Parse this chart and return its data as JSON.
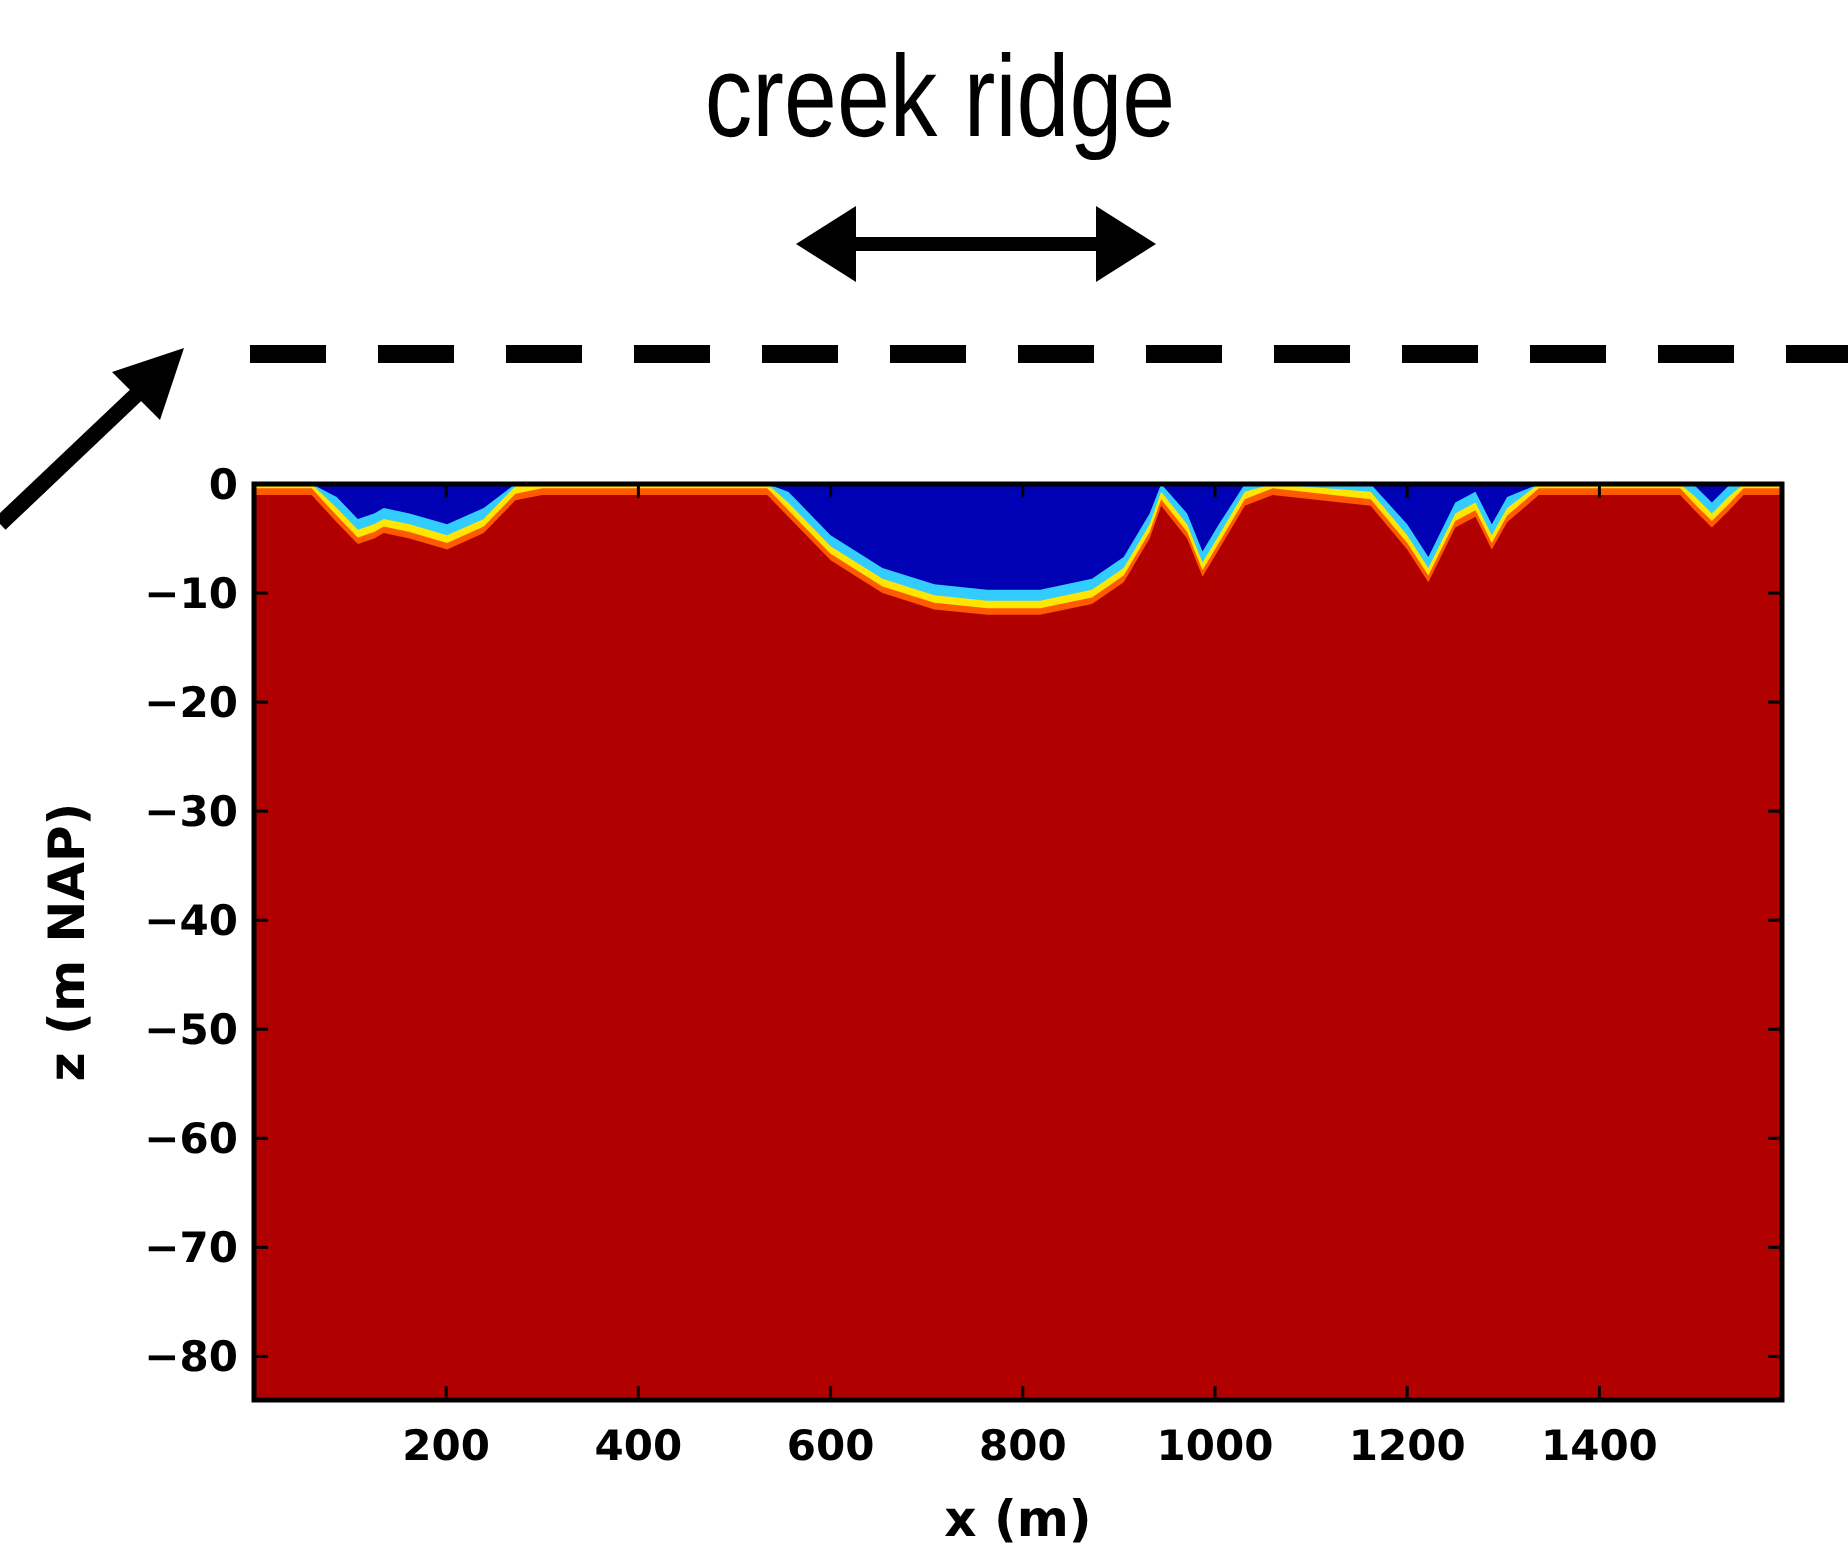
{
  "chart_data": {
    "type": "area",
    "xlabel": "x (m)",
    "ylabel": "z (m NAP)",
    "annotations": [
      "creek ridge"
    ],
    "x": [
      0,
      60,
      86,
      108,
      125,
      135,
      162,
      201,
      239,
      272,
      300,
      450,
      534,
      556,
      600,
      654,
      708,
      763,
      818,
      872,
      905,
      932,
      944,
      971,
      987,
      1004,
      1031,
      1060,
      1162,
      1200,
      1222,
      1250,
      1271,
      1288,
      1304,
      1337,
      1484,
      1500,
      1517,
      1534,
      1550,
      1590
    ],
    "series": [
      {
        "color": "#ff5a00",
        "values": [
          -1,
          -1,
          -3.5,
          -5.5,
          -5,
          -4.5,
          -5,
          -6,
          -4.5,
          -1.5,
          -1,
          -1,
          -1,
          -3,
          -7,
          -10,
          -11.5,
          -12,
          -12,
          -11,
          -9,
          -5,
          -2,
          -5,
          -8.5,
          -6,
          -2,
          -1,
          -2,
          -6,
          -9,
          -4,
          -3,
          -6,
          -3.5,
          -1,
          -1,
          -2.5,
          -4,
          -2.5,
          -1,
          -1
        ]
      },
      {
        "color": "#ffe600",
        "values": [
          -0.4,
          -0.4,
          -2.9,
          -4.9,
          -4.4,
          -3.9,
          -4.4,
          -5.4,
          -3.9,
          -0.9,
          -0.4,
          -0.4,
          -0.4,
          -2.4,
          -6.4,
          -9.4,
          -10.9,
          -11.4,
          -11.4,
          -10.4,
          -8.4,
          -4.4,
          -1.4,
          -4.4,
          -7.9,
          -5.4,
          -1.4,
          -0.4,
          -1.4,
          -5.4,
          -8.4,
          -3.4,
          -2.4,
          -5.4,
          -2.9,
          -0.4,
          -0.4,
          -1.9,
          -3.4,
          -1.9,
          -0.4,
          -0.4
        ]
      },
      {
        "color": "#33ccff",
        "values": [
          0,
          0,
          -2.2,
          -4.2,
          -3.7,
          -3.2,
          -3.7,
          -4.7,
          -3.2,
          -0.2,
          0,
          0,
          0,
          -1.7,
          -5.7,
          -8.7,
          -10.2,
          -10.7,
          -10.7,
          -9.7,
          -7.7,
          -3.7,
          -0.7,
          -3.7,
          -7.2,
          -4.7,
          -0.7,
          0,
          -0.7,
          -4.7,
          -7.7,
          -2.7,
          -1.7,
          -4.7,
          -2.2,
          0,
          0,
          -1.2,
          -2.7,
          -1.2,
          0,
          0
        ]
      },
      {
        "color": "#0000b4",
        "values": [
          0,
          0,
          -1.2,
          -3.2,
          -2.7,
          -2.2,
          -2.7,
          -3.7,
          -2.2,
          0,
          0,
          0,
          0,
          -0.7,
          -4.7,
          -7.7,
          -9.2,
          -9.7,
          -9.7,
          -8.7,
          -6.7,
          -2.7,
          0,
          -2.7,
          -6.2,
          -3.7,
          0,
          0,
          0,
          -3.7,
          -6.7,
          -1.7,
          -0.7,
          -3.7,
          -1.2,
          0,
          0,
          -0.2,
          -1.7,
          -0.2,
          0,
          0
        ]
      }
    ],
    "xlim": [
      0,
      1590
    ],
    "ylim": [
      -84,
      0
    ],
    "xticks": [
      200,
      400,
      600,
      800,
      1000,
      1200,
      1400
    ],
    "yticks": [
      0,
      {
        "value": -10,
        "label": "−10"
      },
      {
        "value": -20,
        "label": "−20"
      },
      {
        "value": -30,
        "label": "−30"
      },
      {
        "value": -40,
        "label": "−40"
      },
      {
        "value": -50,
        "label": "−50"
      },
      {
        "value": -60,
        "label": "−60"
      },
      {
        "value": -70,
        "label": "−70"
      },
      {
        "value": -80,
        "label": "−80"
      }
    ]
  }
}
